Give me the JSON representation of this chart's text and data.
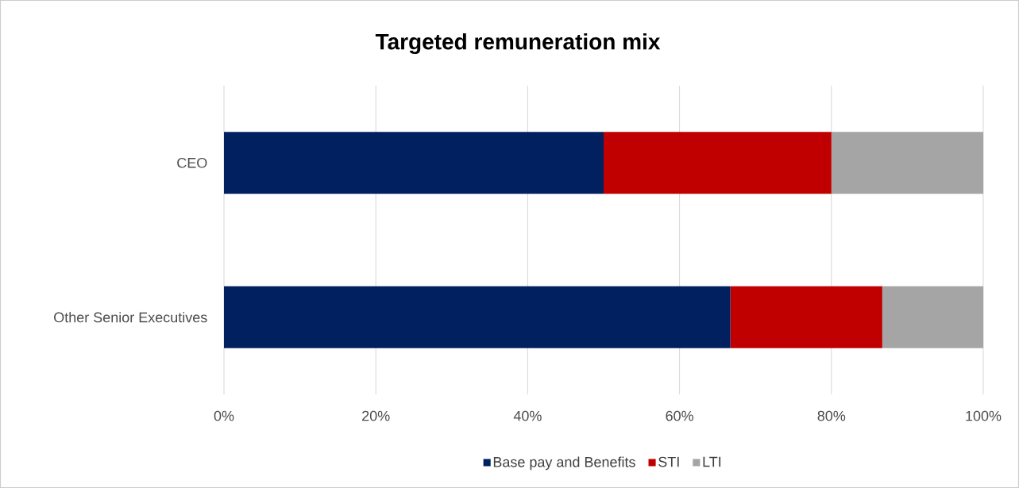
{
  "chart_data": {
    "type": "bar",
    "orientation": "horizontal",
    "stacked": true,
    "title": "Targeted remuneration mix",
    "categories": [
      "CEO",
      "Other Senior Executives"
    ],
    "series": [
      {
        "name": "Base pay and Benefits",
        "color": "#002060",
        "values": [
          50,
          66.7
        ]
      },
      {
        "name": "STI",
        "color": "#c00000",
        "values": [
          30,
          20
        ]
      },
      {
        "name": "LTI",
        "color": "#a5a5a5",
        "values": [
          20,
          13.3
        ]
      }
    ],
    "xlim": [
      0,
      100
    ],
    "xticks": [
      {
        "value": 0,
        "label": "0%"
      },
      {
        "value": 20,
        "label": "20%"
      },
      {
        "value": 40,
        "label": "40%"
      },
      {
        "value": 60,
        "label": "60%"
      },
      {
        "value": 80,
        "label": "80%"
      },
      {
        "value": 100,
        "label": "100%"
      }
    ],
    "grid": "x",
    "legend": "bottom"
  }
}
